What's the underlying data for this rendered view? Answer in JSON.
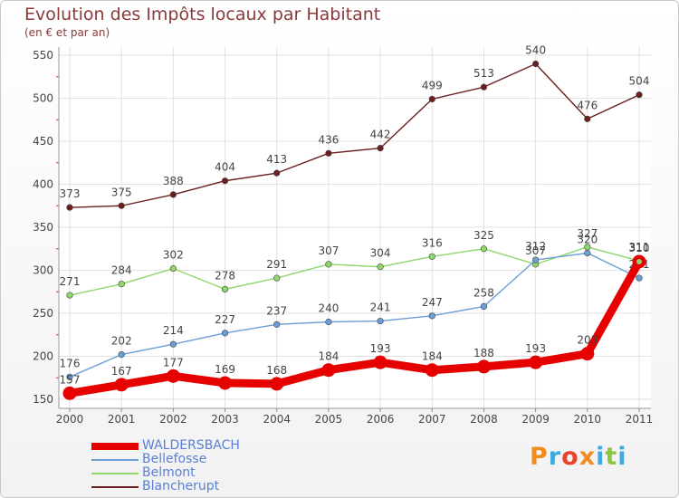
{
  "title": "Evolution des Impôts locaux par Habitant",
  "subtitle": "(en € et par an)",
  "logo": {
    "text": "Proxiti",
    "colors": [
      "#f28c1e",
      "#3fa9e0",
      "#e8412c",
      "#f28c1e",
      "#3fa9e0",
      "#8cc63f",
      "#3fa9e0"
    ]
  },
  "chart_data": {
    "type": "line",
    "x": [
      "2000",
      "2001",
      "2002",
      "2003",
      "2004",
      "2005",
      "2006",
      "2007",
      "2008",
      "2009",
      "2010",
      "2011"
    ],
    "ylim": [
      150,
      550
    ],
    "yticks": [
      "150",
      "200",
      "250",
      "300",
      "350",
      "400",
      "450",
      "500",
      "550"
    ],
    "grid": true,
    "legend_position": "bottom-left",
    "series": [
      {
        "name": "WALDERSBACH",
        "color": "#e60000",
        "values": [
          157,
          167,
          177,
          169,
          168,
          184,
          193,
          184,
          188,
          193,
          203,
          310
        ],
        "labels": [
          "157",
          "167",
          "177",
          "169",
          "168",
          "184",
          "193",
          "184",
          "188",
          "193",
          "203",
          "310"
        ]
      },
      {
        "name": "Bellefosse",
        "color": "#6b9ed6",
        "values": [
          176,
          202,
          214,
          227,
          237,
          240,
          241,
          247,
          258,
          312,
          320,
          291
        ],
        "labels": [
          "176",
          "202",
          "214",
          "227",
          "237",
          "240",
          "241",
          "247",
          "258",
          "312",
          "320",
          "291"
        ]
      },
      {
        "name": "Belmont",
        "color": "#8fd66b",
        "values": [
          271,
          284,
          302,
          278,
          291,
          307,
          304,
          316,
          325,
          307,
          327,
          311
        ],
        "labels": [
          "271",
          "284",
          "302",
          "278",
          "291",
          "307",
          "304",
          "316",
          "325",
          "307",
          "327",
          "311"
        ]
      },
      {
        "name": "Blancherupt",
        "color": "#6b1f1f",
        "values": [
          373,
          375,
          388,
          404,
          413,
          436,
          442,
          499,
          513,
          540,
          476,
          504
        ],
        "labels": [
          "373",
          "375",
          "388",
          "404",
          "413",
          "436",
          "442",
          "499",
          "513",
          "540",
          "476",
          "504"
        ]
      }
    ]
  }
}
